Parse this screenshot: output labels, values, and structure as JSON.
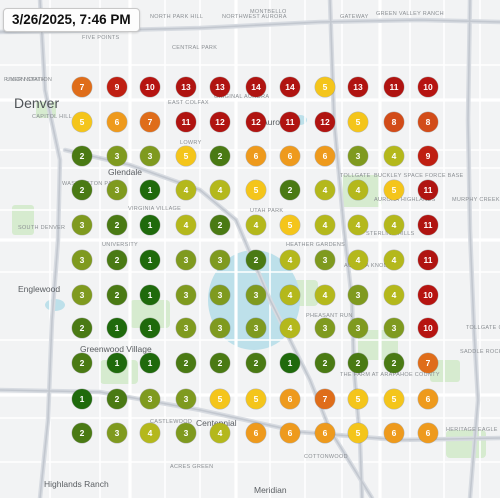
{
  "timestamp": "3/26/2025, 7:46 PM",
  "places": [
    {
      "id": "denver",
      "label": "Denver",
      "kind": "city"
    },
    {
      "id": "globeville",
      "label": "Globeville",
      "kind": "small"
    },
    {
      "id": "river-north",
      "label": "River North",
      "kind": "small"
    },
    {
      "id": "five-points",
      "label": "Five Points",
      "kind": "small"
    },
    {
      "id": "north-park-hill",
      "label": "North Park Hill",
      "kind": "small"
    },
    {
      "id": "northwest-aurora",
      "label": "Northwest Aurora",
      "kind": "small"
    },
    {
      "id": "gateway",
      "label": "Gateway",
      "kind": "small"
    },
    {
      "id": "green-valley-ranch",
      "label": "Green Valley Ranch",
      "kind": "small"
    },
    {
      "id": "union-station",
      "label": "Union Station",
      "kind": "small"
    },
    {
      "id": "central-park",
      "label": "Central Park",
      "kind": "small"
    },
    {
      "id": "montbello",
      "label": "Montbello",
      "kind": "small"
    },
    {
      "id": "east-colfax",
      "label": "East Colfax",
      "kind": "small"
    },
    {
      "id": "original-aurora",
      "label": "Original Aurora",
      "kind": "small"
    },
    {
      "id": "capitol-hill",
      "label": "Capitol Hill",
      "kind": "small"
    },
    {
      "id": "lowry",
      "label": "Lowry",
      "kind": "small"
    },
    {
      "id": "aurora",
      "label": "Aurora",
      "kind": "town"
    },
    {
      "id": "glendale",
      "label": "Glendale",
      "kind": "town"
    },
    {
      "id": "washington-park",
      "label": "Washington Park",
      "kind": "small"
    },
    {
      "id": "virginia-village",
      "label": "Virginia Village",
      "kind": "small"
    },
    {
      "id": "aurora-highlands",
      "label": "Aurora Highlands",
      "kind": "small"
    },
    {
      "id": "utah-park",
      "label": "Utah Park",
      "kind": "small"
    },
    {
      "id": "tollgate",
      "label": "Tollgate",
      "kind": "small"
    },
    {
      "id": "buckley-space-force-base",
      "label": "Buckley Space Force Base",
      "kind": "small"
    },
    {
      "id": "murphy-creek",
      "label": "Murphy Creek",
      "kind": "small"
    },
    {
      "id": "south-denver",
      "label": "South Denver",
      "kind": "small"
    },
    {
      "id": "university",
      "label": "University",
      "kind": "small"
    },
    {
      "id": "heather-gardens",
      "label": "Heather Gardens",
      "kind": "small"
    },
    {
      "id": "sterling-hills",
      "label": "Sterling Hills",
      "kind": "small"
    },
    {
      "id": "aurora-knolls",
      "label": "Aurora Knolls",
      "kind": "small"
    },
    {
      "id": "englewood",
      "label": "Englewood",
      "kind": "town"
    },
    {
      "id": "pheasant-run",
      "label": "Pheasant Run",
      "kind": "small"
    },
    {
      "id": "tollgate-crossing",
      "label": "Tollgate Crossing",
      "kind": "small"
    },
    {
      "id": "greenwood-village",
      "label": "Greenwood Village",
      "kind": "town"
    },
    {
      "id": "the-farm-at-arapahoe-county",
      "label": "The Farm at Arapahoe County",
      "kind": "small"
    },
    {
      "id": "centennial",
      "label": "Centennial",
      "kind": "town"
    },
    {
      "id": "highlands-ranch",
      "label": "Highlands Ranch",
      "kind": "town"
    },
    {
      "id": "meridian",
      "label": "Meridian",
      "kind": "town"
    },
    {
      "id": "cottonwood",
      "label": "Cottonwood",
      "kind": "small"
    },
    {
      "id": "acres-green",
      "label": "Acres Green",
      "kind": "small"
    },
    {
      "id": "castlewood",
      "label": "Castlewood",
      "kind": "small"
    },
    {
      "id": "heritage-eagle-bend",
      "label": "Heritage Eagle Bend",
      "kind": "small"
    },
    {
      "id": "saddle-rock",
      "label": "Saddle Rock",
      "kind": "small"
    }
  ],
  "markers": [
    [
      7,
      9,
      10,
      13,
      13,
      14,
      14,
      5,
      13,
      11,
      10
    ],
    [
      5,
      6,
      7,
      11,
      12,
      12,
      11,
      12,
      5,
      8,
      8
    ],
    [
      2,
      3,
      3,
      5,
      2,
      6,
      6,
      6,
      3,
      4,
      9
    ],
    [
      2,
      3,
      1,
      4,
      4,
      5,
      2,
      4,
      4,
      5,
      11
    ],
    [
      3,
      2,
      1,
      4,
      2,
      4,
      5,
      4,
      4,
      4,
      11
    ],
    [
      3,
      2,
      1,
      3,
      3,
      2,
      4,
      3,
      4,
      4,
      11
    ],
    [
      3,
      2,
      1,
      3,
      3,
      3,
      4,
      4,
      3,
      4,
      10
    ],
    [
      2,
      1,
      1,
      3,
      3,
      3,
      4,
      3,
      3,
      3,
      10
    ],
    [
      2,
      1,
      1,
      2,
      2,
      2,
      1,
      2,
      2,
      2,
      7
    ],
    [
      1,
      2,
      3,
      3,
      5,
      5,
      6,
      7,
      5,
      5,
      6
    ],
    [
      2,
      3,
      4,
      3,
      4,
      6,
      6,
      6,
      5,
      6,
      6
    ]
  ],
  "scale_colors": {
    "1": "#1f6a0c",
    "2": "#4a7a14",
    "3": "#7f9a1f",
    "4": "#b4b81c",
    "5": "#f4c51b",
    "6": "#ee9a1d",
    "7": "#df6d1a",
    "8": "#d24c19",
    "9": "#bf1f12",
    "10": "#b61411",
    "11": "#b01411",
    "12": "#b01411",
    "13": "#b01411",
    "14": "#b01411"
  }
}
